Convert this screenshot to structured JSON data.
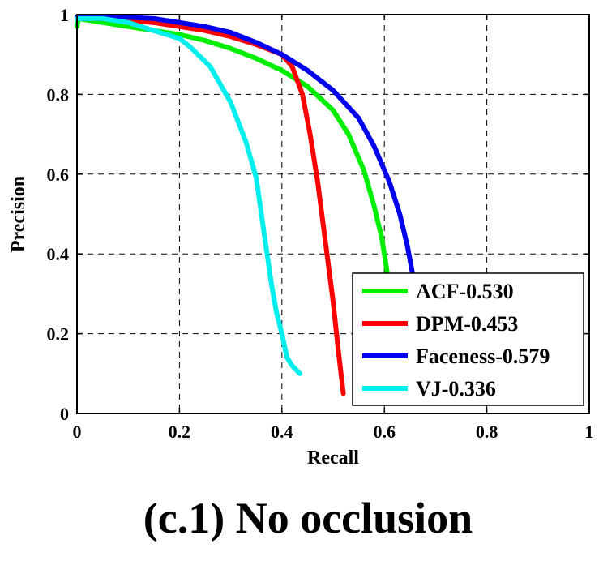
{
  "caption": "(c.1) No occlusion",
  "chart_data": {
    "type": "line",
    "title": "",
    "xlabel": "Recall",
    "ylabel": "Precision",
    "xlim": [
      0,
      1
    ],
    "ylim": [
      0,
      1
    ],
    "xticks": [
      "0",
      "0.2",
      "0.4",
      "0.6",
      "0.8",
      "1"
    ],
    "yticks": [
      "0",
      "0.2",
      "0.4",
      "0.6",
      "0.8",
      "1"
    ],
    "grid": true,
    "legend_position": "bottom-right",
    "series": [
      {
        "name": "ACF-0.530",
        "color": "#00ee00",
        "points": [
          [
            0,
            0.97
          ],
          [
            0.003,
            0.99
          ],
          [
            0.05,
            0.98
          ],
          [
            0.1,
            0.97
          ],
          [
            0.15,
            0.96
          ],
          [
            0.2,
            0.95
          ],
          [
            0.25,
            0.935
          ],
          [
            0.3,
            0.915
          ],
          [
            0.35,
            0.89
          ],
          [
            0.4,
            0.86
          ],
          [
            0.45,
            0.82
          ],
          [
            0.5,
            0.76
          ],
          [
            0.53,
            0.7
          ],
          [
            0.56,
            0.61
          ],
          [
            0.58,
            0.52
          ],
          [
            0.595,
            0.44
          ],
          [
            0.606,
            0.35
          ]
        ]
      },
      {
        "name": "DPM-0.453",
        "color": "#ff0000",
        "points": [
          [
            0,
            0.99
          ],
          [
            0.05,
            0.99
          ],
          [
            0.1,
            0.985
          ],
          [
            0.15,
            0.98
          ],
          [
            0.2,
            0.97
          ],
          [
            0.25,
            0.96
          ],
          [
            0.3,
            0.945
          ],
          [
            0.35,
            0.925
          ],
          [
            0.4,
            0.9
          ],
          [
            0.42,
            0.87
          ],
          [
            0.44,
            0.8
          ],
          [
            0.455,
            0.7
          ],
          [
            0.47,
            0.58
          ],
          [
            0.485,
            0.43
          ],
          [
            0.5,
            0.28
          ],
          [
            0.51,
            0.16
          ],
          [
            0.52,
            0.05
          ]
        ]
      },
      {
        "name": "Faceness-0.579",
        "color": "#0000ee",
        "points": [
          [
            0,
            0.995
          ],
          [
            0.05,
            0.995
          ],
          [
            0.1,
            0.993
          ],
          [
            0.15,
            0.99
          ],
          [
            0.2,
            0.98
          ],
          [
            0.25,
            0.97
          ],
          [
            0.3,
            0.955
          ],
          [
            0.35,
            0.93
          ],
          [
            0.4,
            0.9
          ],
          [
            0.45,
            0.86
          ],
          [
            0.5,
            0.81
          ],
          [
            0.55,
            0.74
          ],
          [
            0.58,
            0.67
          ],
          [
            0.61,
            0.58
          ],
          [
            0.63,
            0.5
          ],
          [
            0.645,
            0.42
          ],
          [
            0.655,
            0.35
          ]
        ]
      },
      {
        "name": "VJ-0.336",
        "color": "#00eeee",
        "points": [
          [
            0,
            0.99
          ],
          [
            0.05,
            0.99
          ],
          [
            0.1,
            0.98
          ],
          [
            0.15,
            0.96
          ],
          [
            0.2,
            0.94
          ],
          [
            0.22,
            0.92
          ],
          [
            0.26,
            0.87
          ],
          [
            0.3,
            0.78
          ],
          [
            0.33,
            0.68
          ],
          [
            0.35,
            0.59
          ],
          [
            0.36,
            0.5
          ],
          [
            0.37,
            0.41
          ],
          [
            0.38,
            0.32
          ],
          [
            0.39,
            0.25
          ],
          [
            0.4,
            0.2
          ],
          [
            0.41,
            0.14
          ],
          [
            0.42,
            0.12
          ],
          [
            0.435,
            0.1
          ]
        ]
      }
    ]
  }
}
